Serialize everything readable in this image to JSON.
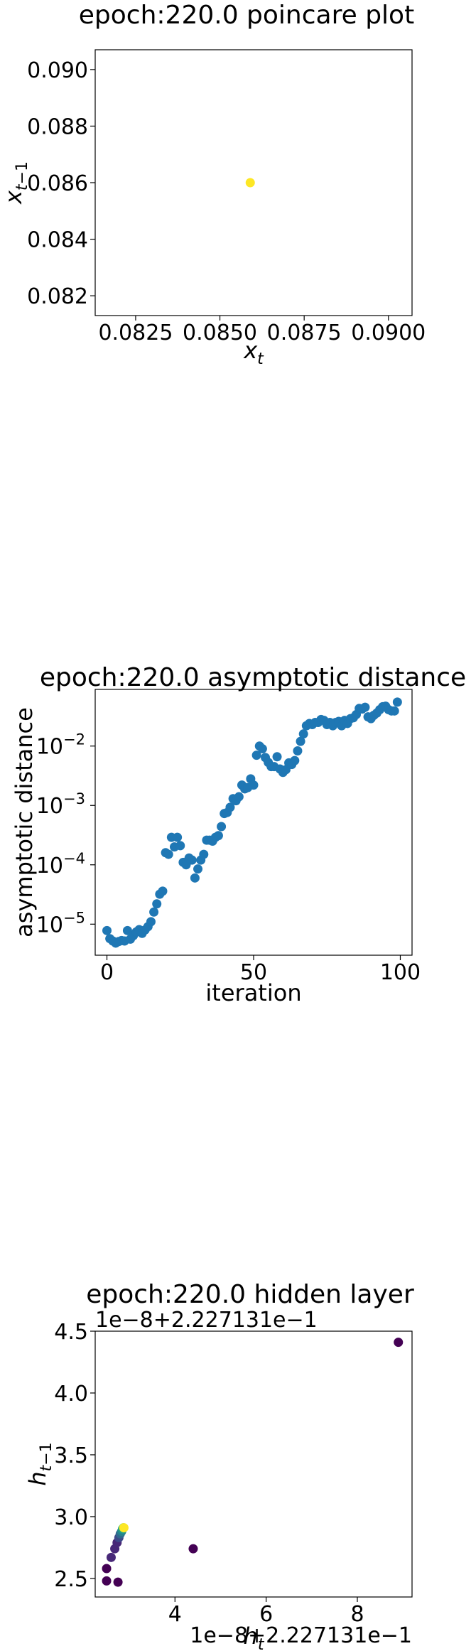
{
  "chart_data": [
    {
      "type": "scatter",
      "title": "epoch:220.0 poincare plot",
      "xlabel": "x_t",
      "ylabel": "x_{t-1}",
      "xlim": [
        0.0813,
        0.0907
      ],
      "ylim": [
        0.0813,
        0.0907
      ],
      "xticks": [
        "0.0825",
        "0.0850",
        "0.0875",
        "0.0900"
      ],
      "xtick_values": [
        0.0825,
        0.085,
        0.0875,
        0.09
      ],
      "yticks": [
        "0.082",
        "0.084",
        "0.086",
        "0.088",
        "0.090"
      ],
      "ytick_values": [
        0.082,
        0.084,
        0.086,
        0.088,
        0.09
      ],
      "color": "#fde725",
      "points": [
        [
          0.0859,
          0.086
        ]
      ]
    },
    {
      "type": "scatter",
      "title": "epoch:220.0 asymptotic distance",
      "xlabel": "iteration",
      "ylabel": "asymptotic distance",
      "yscale": "log",
      "xlim": [
        -4,
        104
      ],
      "ylim": [
        3e-06,
        0.09
      ],
      "xticks": [
        "0",
        "50",
        "100"
      ],
      "xtick_values": [
        0,
        50,
        100
      ],
      "yticks": [
        "10",
        "10",
        "10",
        "10"
      ],
      "ytick_exponents": [
        "−5",
        "−4",
        "−3",
        "−2"
      ],
      "ytick_values": [
        1e-05,
        0.0001,
        0.001,
        0.01
      ],
      "color": "#1f77b4",
      "y": [
        7.8e-06,
        5.7e-06,
        5.2e-06,
        4.8e-06,
        5.1e-06,
        5.3e-06,
        5.2e-06,
        7.8e-06,
        5.6e-06,
        6.4e-06,
        7.4e-06,
        8.1e-06,
        7e-06,
        8e-06,
        9.1e-06,
        1.1e-05,
        1.6e-05,
        2.2e-05,
        3.2e-05,
        3.6e-05,
        0.00016,
        0.00015,
        0.00029,
        0.0002,
        0.00029,
        0.00021,
        0.00011,
        0.0001,
        0.00013,
        0.00012,
        6e-05,
        8.5e-05,
        0.00012,
        0.00015,
        0.00026,
        0.00026,
        0.00025,
        0.00029,
        0.00031,
        0.00044,
        0.00073,
        0.00076,
        0.00093,
        0.0013,
        0.0012,
        0.0014,
        0.0022,
        0.0019,
        0.002,
        0.0028,
        0.0022,
        0.007,
        0.01,
        0.009,
        0.0064,
        0.0053,
        0.0045,
        0.0045,
        0.0066,
        0.0041,
        0.0036,
        0.004,
        0.0052,
        0.0049,
        0.0057,
        0.0083,
        0.012,
        0.016,
        0.022,
        0.024,
        0.023,
        0.025,
        0.025,
        0.028,
        0.027,
        0.023,
        0.025,
        0.022,
        0.025,
        0.026,
        0.022,
        0.027,
        0.024,
        0.029,
        0.03,
        0.034,
        0.043,
        0.042,
        0.045,
        0.031,
        0.029,
        0.033,
        0.036,
        0.041,
        0.046,
        0.047,
        0.041,
        0.039,
        0.039,
        0.055
      ]
    },
    {
      "type": "scatter",
      "title": "epoch:220.0 hidden layer",
      "xlabel": "h_t",
      "ylabel": "h_{t-1}",
      "x_offset_label": "1e−8+2.227131e−1",
      "y_offset_label": "1e−8+2.227131e−1",
      "xlim": [
        2.25,
        9.2
      ],
      "ylim": [
        2.35,
        4.5
      ],
      "xticks": [
        "4",
        "6",
        "8"
      ],
      "xtick_values": [
        4,
        6,
        8
      ],
      "yticks": [
        "2.5",
        "3.0",
        "3.5",
        "4.0",
        "4.5"
      ],
      "ytick_values": [
        2.5,
        3.0,
        3.5,
        4.0,
        4.5
      ],
      "colormap": [
        "#440154",
        "#482878",
        "#3e4989",
        "#31688e",
        "#26828e",
        "#1f9e89",
        "#35b779",
        "#6ece58",
        "#b5de2b",
        "#fde725"
      ],
      "points": [
        [
          8.9,
          4.41
        ],
        [
          2.5,
          2.48
        ],
        [
          2.75,
          2.47
        ],
        [
          4.4,
          2.74
        ],
        [
          2.5,
          2.58
        ],
        [
          2.6,
          2.67
        ],
        [
          2.68,
          2.74
        ],
        [
          2.73,
          2.79
        ],
        [
          2.77,
          2.83
        ],
        [
          2.8,
          2.86
        ],
        [
          2.83,
          2.88
        ],
        [
          2.85,
          2.9
        ],
        [
          2.87,
          2.91
        ],
        [
          2.88,
          2.91
        ]
      ]
    }
  ]
}
